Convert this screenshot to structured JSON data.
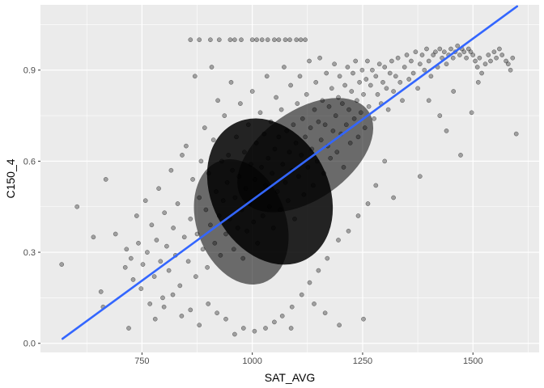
{
  "chart_data": {
    "type": "scatter",
    "title": "",
    "xlabel": "SAT_AVG",
    "ylabel": "C150_4",
    "xlim": [
      520,
      1650
    ],
    "ylim": [
      -0.03,
      1.115
    ],
    "x_ticks": [
      750,
      1000,
      1250,
      1500
    ],
    "x_tick_labels": [
      "750",
      "1000",
      "1250",
      "1500"
    ],
    "y_ticks": [
      0.0,
      0.3,
      0.6,
      0.9
    ],
    "y_tick_labels": [
      "0.0",
      "0.3",
      "0.6",
      "0.9"
    ],
    "grid": true,
    "background": "#ebebeb",
    "point_color": "#000000",
    "point_opacity": 0.32,
    "trend_line": {
      "color": "#3366ff",
      "x": [
        570,
        1600
      ],
      "y": [
        0.015,
        1.11
      ]
    },
    "series": [
      {
        "points": [
          [
            568,
            0.26
          ],
          [
            603,
            0.45
          ],
          [
            640,
            0.35
          ],
          [
            657,
            0.17
          ],
          [
            662,
            0.12
          ],
          [
            668,
            0.54
          ],
          [
            690,
            0.36
          ],
          [
            712,
            0.25
          ],
          [
            715,
            0.31
          ],
          [
            720,
            0.05
          ],
          [
            725,
            0.28
          ],
          [
            730,
            0.21
          ],
          [
            738,
            0.42
          ],
          [
            742,
            0.33
          ],
          [
            748,
            0.18
          ],
          [
            752,
            0.26
          ],
          [
            758,
            0.47
          ],
          [
            762,
            0.3
          ],
          [
            768,
            0.13
          ],
          [
            772,
            0.39
          ],
          [
            778,
            0.22
          ],
          [
            783,
            0.34
          ],
          [
            788,
            0.51
          ],
          [
            792,
            0.27
          ],
          [
            797,
            0.15
          ],
          [
            801,
            0.43
          ],
          [
            806,
            0.32
          ],
          [
            811,
            0.24
          ],
          [
            816,
            0.57
          ],
          [
            821,
            0.38
          ],
          [
            826,
            0.29
          ],
          [
            831,
            0.46
          ],
          [
            836,
            0.19
          ],
          [
            841,
            0.62
          ],
          [
            846,
            0.35
          ],
          [
            850,
            0.65
          ],
          [
            855,
            0.27
          ],
          [
            860,
            0.41
          ],
          [
            865,
            0.54
          ],
          [
            870,
            0.88
          ],
          [
            872,
            0.22
          ],
          [
            875,
            0.36
          ],
          [
            880,
            0.48
          ],
          [
            884,
            0.6
          ],
          [
            888,
            0.31
          ],
          [
            892,
            0.71
          ],
          [
            895,
            0.44
          ],
          [
            898,
            0.25
          ],
          [
            901,
            0.56
          ],
          [
            905,
            0.39
          ],
          [
            908,
            0.91
          ],
          [
            912,
            0.67
          ],
          [
            915,
            0.33
          ],
          [
            918,
            0.5
          ],
          [
            922,
            0.8
          ],
          [
            925,
            0.42
          ],
          [
            928,
            0.29
          ],
          [
            931,
            0.6
          ],
          [
            934,
            0.47
          ],
          [
            937,
            0.75
          ],
          [
            940,
            0.36
          ],
          [
            943,
            0.53
          ],
          [
            946,
            0.62
          ],
          [
            949,
            0.41
          ],
          [
            952,
            0.86
          ],
          [
            955,
            0.57
          ],
          [
            958,
            0.31
          ],
          [
            961,
            0.48
          ],
          [
            964,
            0.68
          ],
          [
            967,
            0.38
          ],
          [
            970,
            0.55
          ],
          [
            973,
            0.79
          ],
          [
            976,
            0.44
          ],
          [
            979,
            0.28
          ],
          [
            982,
            0.63
          ],
          [
            985,
            0.51
          ],
          [
            988,
            0.37
          ],
          [
            991,
            0.72
          ],
          [
            994,
            0.46
          ],
          [
            997,
            0.59
          ],
          [
            1000,
            0.83
          ],
          [
            1003,
            0.4
          ],
          [
            1006,
            0.54
          ],
          [
            1009,
            0.66
          ],
          [
            1012,
            0.33
          ],
          [
            1015,
            0.49
          ],
          [
            1018,
            0.76
          ],
          [
            1021,
            0.58
          ],
          [
            1024,
            0.42
          ],
          [
            1027,
            0.69
          ],
          [
            1030,
            0.52
          ],
          [
            1033,
            0.88
          ],
          [
            1036,
            0.61
          ],
          [
            1039,
            0.45
          ],
          [
            1042,
            0.73
          ],
          [
            1045,
            0.56
          ],
          [
            1048,
            0.38
          ],
          [
            1051,
            0.64
          ],
          [
            1054,
            0.81
          ],
          [
            1057,
            0.5
          ],
          [
            1060,
            0.68
          ],
          [
            1063,
            0.44
          ],
          [
            1066,
            0.77
          ],
          [
            1069,
            0.59
          ],
          [
            1072,
            0.91
          ],
          [
            1075,
            0.53
          ],
          [
            1078,
            0.7
          ],
          [
            1081,
            0.47
          ],
          [
            1084,
            0.63
          ],
          [
            1087,
            0.85
          ],
          [
            1090,
            0.57
          ],
          [
            1093,
            0.72
          ],
          [
            1096,
            0.41
          ],
          [
            1099,
            0.66
          ],
          [
            1102,
            0.79
          ],
          [
            1105,
            0.55
          ],
          [
            1108,
            0.88
          ],
          [
            1111,
            0.62
          ],
          [
            1114,
            0.74
          ],
          [
            1117,
            0.49
          ],
          [
            1120,
            0.68
          ],
          [
            1123,
            0.82
          ],
          [
            1126,
            0.58
          ],
          [
            1129,
            0.93
          ],
          [
            1132,
            0.71
          ],
          [
            1135,
            0.64
          ],
          [
            1138,
            0.52
          ],
          [
            1141,
            0.77
          ],
          [
            1144,
            0.86
          ],
          [
            1147,
            0.6
          ],
          [
            1150,
            0.73
          ],
          [
            1153,
            0.94
          ],
          [
            1156,
            0.67
          ],
          [
            1159,
            0.8
          ],
          [
            1162,
            0.56
          ],
          [
            1165,
            0.72
          ],
          [
            1168,
            0.89
          ],
          [
            1171,
            0.65
          ],
          [
            1174,
            0.78
          ],
          [
            1177,
            0.61
          ],
          [
            1180,
            0.84
          ],
          [
            1183,
            0.7
          ],
          [
            1186,
            0.92
          ],
          [
            1189,
            0.75
          ],
          [
            1192,
            0.63
          ],
          [
            1195,
            0.81
          ],
          [
            1198,
            0.88
          ],
          [
            1201,
            0.69
          ],
          [
            1204,
            0.79
          ],
          [
            1207,
            0.58
          ],
          [
            1210,
            0.85
          ],
          [
            1213,
            0.72
          ],
          [
            1216,
            0.91
          ],
          [
            1219,
            0.77
          ],
          [
            1222,
            0.66
          ],
          [
            1225,
            0.83
          ],
          [
            1228,
            0.89
          ],
          [
            1231,
            0.74
          ],
          [
            1234,
            0.93
          ],
          [
            1237,
            0.8
          ],
          [
            1240,
            0.68
          ],
          [
            1243,
            0.86
          ],
          [
            1246,
            0.76
          ],
          [
            1249,
            0.9
          ],
          [
            1252,
            0.82
          ],
          [
            1255,
            0.71
          ],
          [
            1258,
            0.87
          ],
          [
            1261,
            0.93
          ],
          [
            1264,
            0.78
          ],
          [
            1268,
            0.85
          ],
          [
            1272,
            0.9
          ],
          [
            1276,
            0.74
          ],
          [
            1280,
            0.88
          ],
          [
            1284,
            0.82
          ],
          [
            1288,
            0.92
          ],
          [
            1292,
            0.79
          ],
          [
            1296,
            0.86
          ],
          [
            1300,
            0.91
          ],
          [
            1304,
            0.84
          ],
          [
            1308,
            0.77
          ],
          [
            1312,
            0.89
          ],
          [
            1316,
            0.93
          ],
          [
            1320,
            0.83
          ],
          [
            1325,
            0.88
          ],
          [
            1330,
            0.94
          ],
          [
            1335,
            0.86
          ],
          [
            1340,
            0.8
          ],
          [
            1345,
            0.91
          ],
          [
            1350,
            0.95
          ],
          [
            1355,
            0.87
          ],
          [
            1360,
            0.93
          ],
          [
            1365,
            0.89
          ],
          [
            1370,
            0.96
          ],
          [
            1375,
            0.84
          ],
          [
            1380,
            0.92
          ],
          [
            1385,
            0.95
          ],
          [
            1390,
            0.9
          ],
          [
            1395,
            0.97
          ],
          [
            1400,
            0.93
          ],
          [
            1405,
            0.88
          ],
          [
            1410,
            0.95
          ],
          [
            1415,
            0.96
          ],
          [
            1420,
            0.91
          ],
          [
            1425,
            0.97
          ],
          [
            1430,
            0.94
          ],
          [
            1435,
            0.96
          ],
          [
            1440,
            0.92
          ],
          [
            1445,
            0.95
          ],
          [
            1450,
            0.97
          ],
          [
            1455,
            0.94
          ],
          [
            1460,
            0.96
          ],
          [
            1465,
            0.98
          ],
          [
            1470,
            0.95
          ],
          [
            1475,
            0.97
          ],
          [
            1480,
            0.96
          ],
          [
            1485,
            0.94
          ],
          [
            1490,
            0.97
          ],
          [
            1495,
            0.96
          ],
          [
            1500,
            0.95
          ],
          [
            1505,
            0.93
          ],
          [
            1510,
            0.91
          ],
          [
            1515,
            0.94
          ],
          [
            1520,
            0.89
          ],
          [
            1528,
            0.92
          ],
          [
            1535,
            0.95
          ],
          [
            1540,
            0.93
          ],
          [
            1548,
            0.96
          ],
          [
            1553,
            0.94
          ],
          [
            1560,
            0.97
          ],
          [
            1566,
            0.95
          ],
          [
            1575,
            0.93
          ],
          [
            1580,
            0.92
          ],
          [
            1585,
            0.9
          ],
          [
            1590,
            0.94
          ],
          [
            1598,
            0.69
          ],
          [
            1380,
            0.55
          ],
          [
            1400,
            0.8
          ],
          [
            1425,
            0.75
          ],
          [
            1440,
            0.7
          ],
          [
            1456,
            0.83
          ],
          [
            1472,
            0.62
          ],
          [
            1497,
            0.76
          ],
          [
            1512,
            0.86
          ],
          [
            1300,
            0.6
          ],
          [
            1320,
            0.48
          ],
          [
            1280,
            0.52
          ],
          [
            1262,
            0.46
          ],
          [
            1240,
            0.42
          ],
          [
            1218,
            0.37
          ],
          [
            1195,
            0.34
          ],
          [
            1170,
            0.28
          ],
          [
            1150,
            0.24
          ],
          [
            1130,
            0.2
          ],
          [
            1112,
            0.16
          ],
          [
            1090,
            0.12
          ],
          [
            1068,
            0.09
          ],
          [
            1050,
            0.07
          ],
          [
            1030,
            0.05
          ],
          [
            1005,
            0.04
          ],
          [
            980,
            0.05
          ],
          [
            960,
            0.03
          ],
          [
            940,
            0.08
          ],
          [
            920,
            0.1
          ],
          [
            900,
            0.13
          ],
          [
            880,
            0.06
          ],
          [
            860,
            0.11
          ],
          [
            840,
            0.09
          ],
          [
            820,
            0.16
          ],
          [
            800,
            0.12
          ],
          [
            780,
            0.08
          ],
          [
            1252,
            0.08
          ],
          [
            1197,
            0.06
          ],
          [
            1165,
            0.1
          ],
          [
            1140,
            0.13
          ],
          [
            1088,
            0.05
          ],
          [
            860,
            1.0
          ],
          [
            880,
            1.0
          ],
          [
            905,
            1.0
          ],
          [
            925,
            1.0
          ],
          [
            950,
            1.0
          ],
          [
            960,
            1.0
          ],
          [
            975,
            1.0
          ],
          [
            1000,
            1.0
          ],
          [
            1010,
            1.0
          ],
          [
            1022,
            1.0
          ],
          [
            1035,
            1.0
          ],
          [
            1050,
            1.0
          ],
          [
            1060,
            1.0
          ],
          [
            1075,
            1.0
          ],
          [
            1085,
            1.0
          ],
          [
            1100,
            1.0
          ],
          [
            1110,
            1.0
          ],
          [
            1120,
            1.0
          ]
        ]
      }
    ]
  }
}
